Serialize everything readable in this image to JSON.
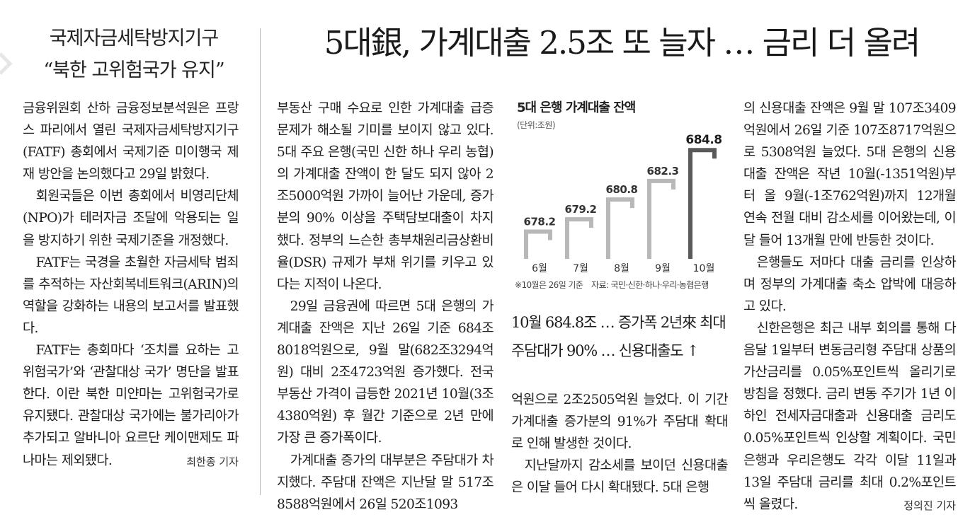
{
  "side_article": {
    "headline_line1": "국제자금세탁방지기구",
    "headline_line2": "“북한 고위험국가 유지”",
    "paragraphs": [
      "금융위원회 산하 금융정보분석원은 프랑스 파리에서 열린 국제자금세탁방지기구(FATF) 총회에서 국제기준 미이행국 제재 방안을 논의했다고 29일 밝혔다.",
      "회원국들은 이번 총회에서 비영리단체(NPO)가 테러자금 조달에 악용되는 일을 방지하기 위한 국제기준을 개정했다.",
      "FATF는 국경을 초월한 자금세탁 범죄를 추적하는 자산회복네트워크(ARIN)의 역할을 강화하는 내용의 보고서를 발표했다.",
      "FATF는 총회마다 ‘조치를 요하는 고위험국가’와 ‘관찰대상 국가’ 명단을 발표한다. 이란 북한 미얀마는 고위험국가로 유지됐다. 관찰대상 국가에는 불가리아가 추가되고 알바니아 요르단 케이맨제도 파나마는 제외됐다."
    ],
    "byline": "최한종 기자"
  },
  "main_article": {
    "headline": "5대銀, 가계대출 2.5조 또 늘자 … 금리 더 올려",
    "subhead_line1": "10월 684.8조 … 증가폭 2년來 최대",
    "subhead_line2": "주담대가 90% … 신용대출도 ↑",
    "col2_paragraphs": [
      "부동산 구매 수요로 인한 가계대출 급증 문제가 해소될 기미를 보이지 않고 있다. 5대 주요 은행(국민 신한 하나 우리 농협)의 가계대출 잔액이 한 달도 되지 않아 2조5000억원 가까이 늘어난 가운데, 증가분의 90% 이상을 주택담보대출이 차지했다. 정부의 느슨한 총부채원리금상환비율(DSR) 규제가 부채 위기를 키우고 있다는 지적이 나온다.",
      "29일 금융권에 따르면 5대 은행의 가계대출 잔액은 지난 26일 기준 684조8018억원으로, 9월 말(682조3294억원) 대비 2조4723억원 증가했다. 전국 부동산 가격이 급등한 2021년 10월(3조4380억원) 후 월간 기준으로 2년 만에 가장 큰 증가폭이다.",
      "가계대출 증가의 대부분은 주담대가 차지했다. 주담대 잔액은 지난달 말 517조8588억원에서 26일 520조1093"
    ],
    "col3_paragraphs": [
      "억원으로 2조2505억원 늘었다. 이 기간 가계대출 증가분의 91%가 주담대 확대로 인해 발생한 것이다.",
      "지난달까지 감소세를 보이던 신용대출은 이달 들어 다시 확대됐다. 5대 은행"
    ],
    "col4_paragraphs": [
      "의 신용대출 잔액은 9월 말 107조3409억원에서 26일 기준 107조8717억원으로 5308억원 늘었다. 5대 은행의 신용대출 잔액은 작년 10월(-1351억원)부터 올 9월(-1조762억원)까지 12개월 연속 전월 대비 감소세를 이어왔는데, 이달 들어 13개월 만에 반등한 것이다.",
      "은행들도 저마다 대출 금리를 인상하며 정부의 가계대출 축소 압박에 대응하고 있다.",
      "신한은행은 최근 내부 회의를 통해 다음달 1일부터 변동금리형 주담대 상품의 가산금리를 0.05%포인트씩 올리기로 방침을 정했다. 금리 변동 주기가 1년 이하인 전세자금대출과 신용대출 금리도 0.05%포인트씩 인상할 계획이다. 국민은행과 우리은행도 각각 이달 11일과 13일 주담대 금리를 최대 0.2%포인트씩 올렸다."
    ],
    "byline": "정의진 기자"
  },
  "chart": {
    "note": "※10월은 26일 기준",
    "source": "자료: 국민·신한·하나·우리·농협은행"
  },
  "chart_data": {
    "type": "bar",
    "title": "5대 은행 가계대출 잔액",
    "unit_label": "(단위:조원)",
    "categories": [
      "6월",
      "7월",
      "8월",
      "9월",
      "10월"
    ],
    "values": [
      678.2,
      679.2,
      680.8,
      682.3,
      684.8
    ],
    "value_labels": [
      "678.2",
      "679.2",
      "680.8",
      "682.3",
      "684.8"
    ],
    "ylim": [
      676.0,
      685.5
    ],
    "colors": {
      "normal": "#b8b8b8",
      "highlight": "#5a5a5a"
    },
    "highlight_index": 4,
    "grid": false,
    "legend": "none"
  }
}
